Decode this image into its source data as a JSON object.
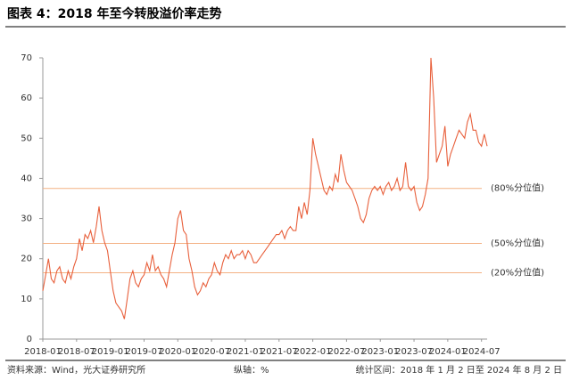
{
  "chart_data": {
    "type": "line",
    "title": "图表 4：2018 年至今转股溢价率走势",
    "source": "资料来源：Wind，光大证券研究所",
    "y_axis_note": "纵轴：%",
    "period": "统计区间：2018 年 1 月 2 日至 2024 年 8 月 2 日",
    "categories": [
      "2018-01",
      null,
      null,
      null,
      null,
      null,
      null,
      null,
      null,
      null,
      null,
      null,
      "2018-07",
      null,
      null,
      null,
      null,
      null,
      null,
      null,
      null,
      null,
      null,
      null,
      "2019-01",
      null,
      null,
      null,
      null,
      null,
      null,
      null,
      null,
      null,
      null,
      null,
      "2019-07",
      null,
      null,
      null,
      null,
      null,
      null,
      null,
      null,
      null,
      null,
      null,
      "2020-01",
      null,
      null,
      null,
      null,
      null,
      null,
      null,
      null,
      null,
      null,
      null,
      "2020-07",
      null,
      null,
      null,
      null,
      null,
      null,
      null,
      null,
      null,
      null,
      null,
      "2021-01",
      null,
      null,
      null,
      null,
      null,
      null,
      null,
      null,
      null,
      null,
      null,
      "2021-07",
      null,
      null,
      null,
      null,
      null,
      null,
      null,
      null,
      null,
      null,
      null,
      "2022-01",
      null,
      null,
      null,
      null,
      null,
      null,
      null,
      null,
      null,
      null,
      null,
      "2022-07",
      null,
      null,
      null,
      null,
      null,
      null,
      null,
      null,
      null,
      null,
      null,
      "2023-01",
      null,
      null,
      null,
      null,
      null,
      null,
      null,
      null,
      null,
      null,
      null,
      "2023-07",
      null,
      null,
      null,
      null,
      null,
      null,
      null,
      null,
      null,
      null,
      null,
      "2024-01",
      null,
      null,
      null,
      null,
      null,
      null,
      null,
      null,
      null,
      null,
      null,
      "2024-07",
      null,
      null
    ],
    "color": "#e8603c",
    "values": [
      12,
      16,
      20,
      15,
      14,
      17,
      18,
      15,
      14,
      17,
      15,
      18,
      20,
      25,
      22,
      26,
      25,
      27,
      24,
      28,
      33,
      27,
      24,
      22,
      17,
      12,
      9,
      8,
      7,
      5,
      10,
      15,
      17,
      14,
      13,
      15,
      16,
      19,
      17,
      21,
      17,
      18,
      16,
      15,
      13,
      17,
      21,
      24,
      30,
      32,
      27,
      26,
      20,
      17,
      13,
      11,
      12,
      14,
      13,
      15,
      16,
      19,
      17,
      16,
      19,
      21,
      20,
      22,
      20,
      21,
      21,
      22,
      20,
      22,
      21,
      19,
      19,
      20,
      21,
      22,
      23,
      24,
      25,
      26,
      26,
      27,
      25,
      27,
      28,
      27,
      27,
      33,
      30,
      34,
      31,
      37,
      50,
      46,
      43,
      40,
      37,
      36,
      38,
      37,
      41,
      39,
      46,
      42,
      39,
      38,
      37,
      35,
      33,
      30,
      29,
      31,
      35,
      37,
      38,
      37,
      38,
      36,
      38,
      39,
      37,
      38,
      40,
      37,
      38,
      44,
      38,
      37,
      38,
      34,
      32,
      33,
      36,
      40,
      70,
      60,
      44,
      46,
      48,
      53,
      43,
      46,
      48,
      50,
      52,
      51,
      50,
      54,
      56,
      52,
      52,
      49,
      48,
      51,
      48
    ],
    "reference_lines": [
      {
        "value": 37.5,
        "label": "(80%分位值)"
      },
      {
        "value": 23.8,
        "label": "(50%分位值)"
      },
      {
        "value": 16.5,
        "label": "(20%分位值)"
      }
    ],
    "reference_color": "#f4b183",
    "ylim": [
      0,
      70
    ],
    "yticks": [
      0,
      10,
      20,
      30,
      40,
      50,
      60,
      70
    ]
  }
}
